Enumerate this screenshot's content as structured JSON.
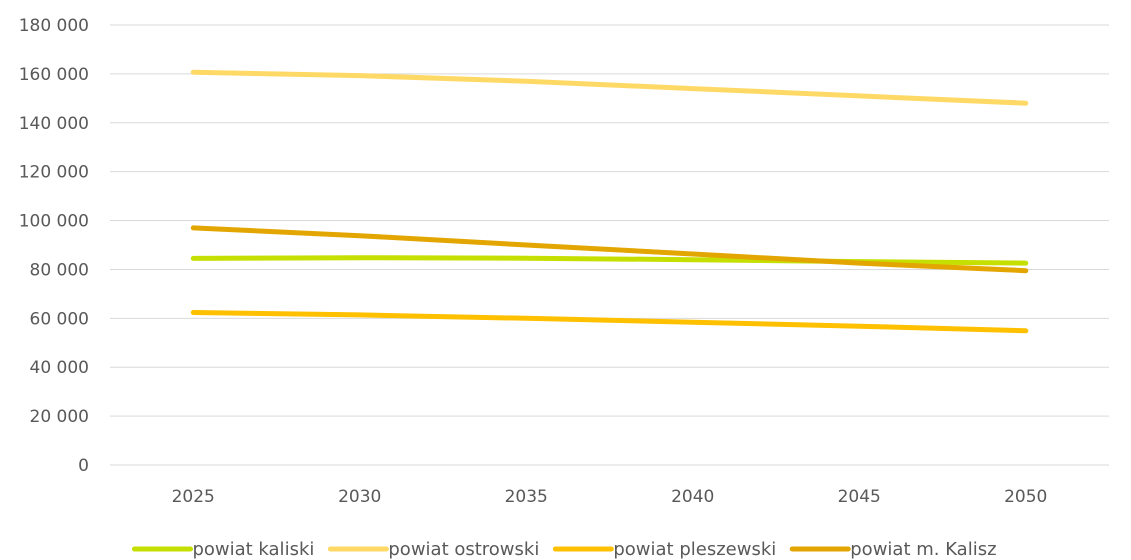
{
  "chart_data": {
    "type": "line",
    "title": "",
    "xlabel": "",
    "ylabel": "",
    "categories": [
      "2025",
      "2030",
      "2035",
      "2040",
      "2045",
      "2050"
    ],
    "ylim": [
      0,
      180000
    ],
    "yticks": [
      0,
      20000,
      40000,
      60000,
      80000,
      100000,
      120000,
      140000,
      160000,
      180000
    ],
    "ytick_labels": [
      "0",
      "20 000",
      "40 000",
      "60 000",
      "80 000",
      "100 000",
      "120 000",
      "140 000",
      "160 000",
      "180 000"
    ],
    "grid": true,
    "legend_position": "bottom",
    "series": [
      {
        "name": "powiat kaliski",
        "color": "#c5e000",
        "values": [
          84500,
          84800,
          84600,
          84000,
          83200,
          82600
        ]
      },
      {
        "name": "powiat ostrowski",
        "color": "#ffd966",
        "values": [
          160700,
          159300,
          157000,
          154000,
          151000,
          148000
        ]
      },
      {
        "name": "powiat pleszewski",
        "color": "#ffc000",
        "values": [
          62400,
          61400,
          60000,
          58400,
          56800,
          54900
        ]
      },
      {
        "name": "powiat m. Kalisz",
        "color": "#e3a600",
        "values": [
          97000,
          93800,
          90000,
          86300,
          82600,
          79500
        ]
      }
    ]
  }
}
